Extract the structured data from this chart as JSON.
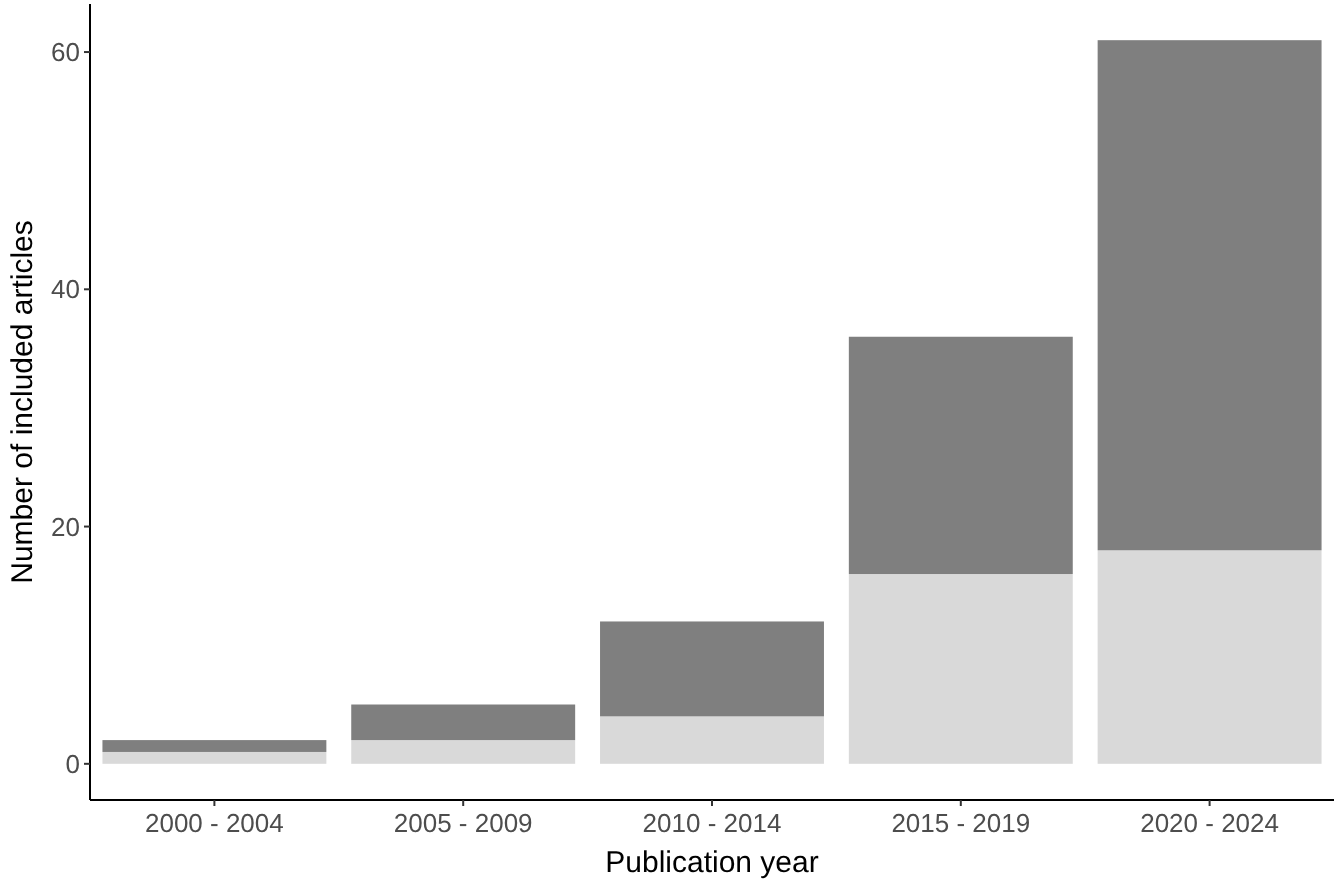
{
  "chart_data": {
    "type": "bar",
    "stacked": true,
    "xlabel": "Publication year",
    "ylabel": "Number of included articles",
    "categories": [
      "2000 - 2004",
      "2005 - 2009",
      "2010 - 2014",
      "2015 - 2019",
      "2020 - 2024"
    ],
    "series": [
      {
        "color": "#d9d9d9",
        "values": [
          1,
          2,
          4,
          16,
          18
        ]
      },
      {
        "color": "#7f7f7f",
        "values": [
          1,
          3,
          8,
          20,
          43
        ]
      }
    ],
    "ylim": [
      -3.05,
      64.05
    ],
    "yticks": [
      0,
      20,
      40,
      60
    ],
    "grid": false
  }
}
